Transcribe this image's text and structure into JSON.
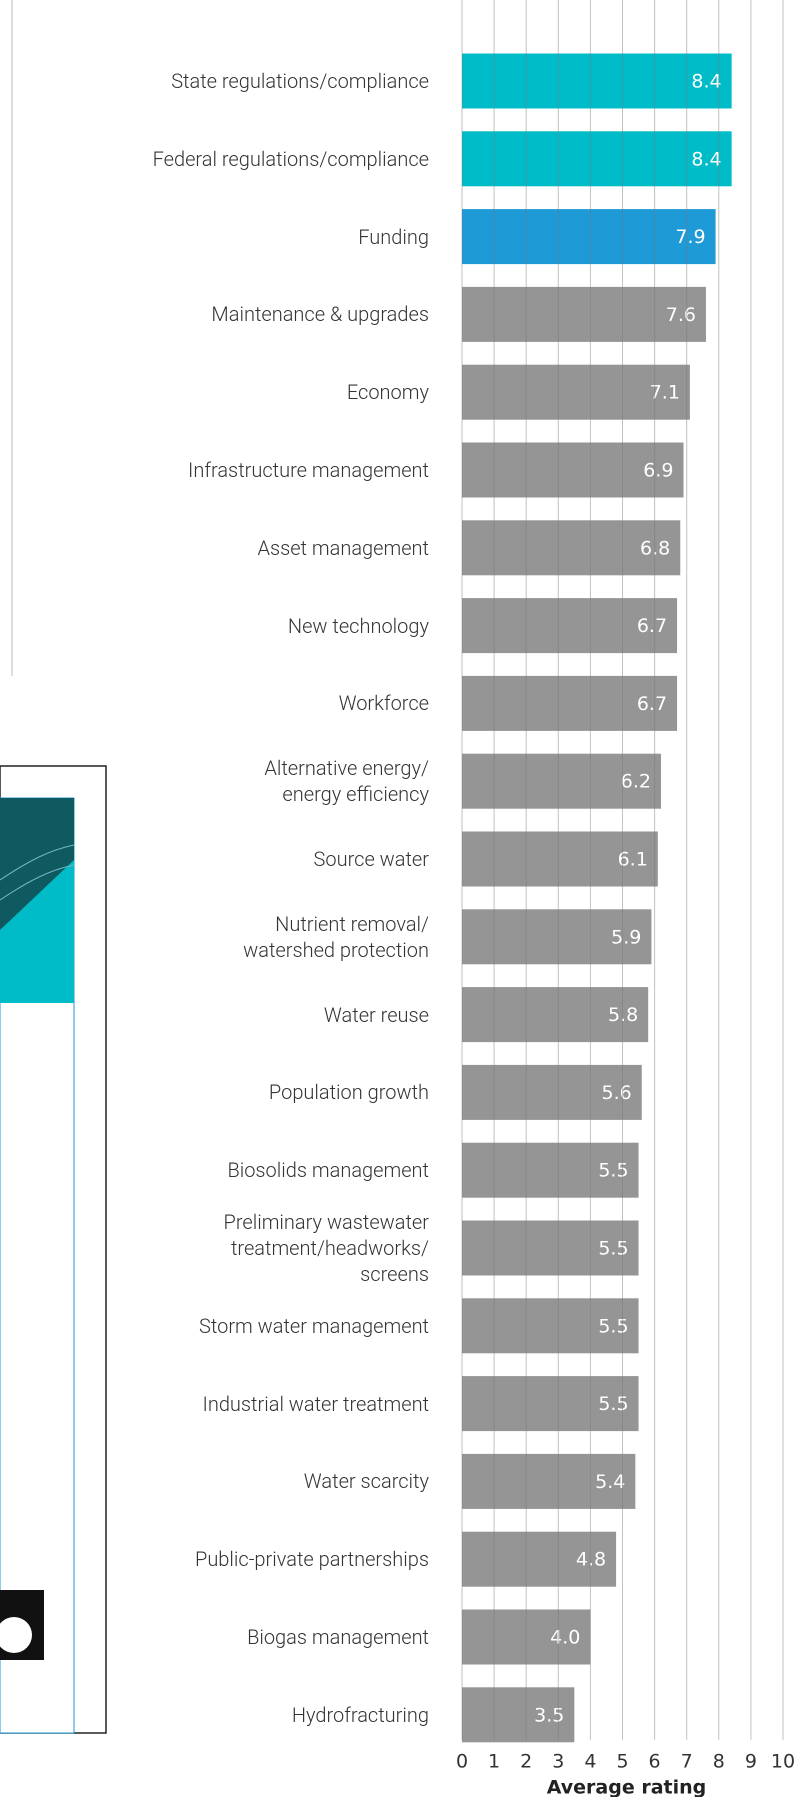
{
  "chart_data": {
    "type": "barh",
    "categories": [
      "State regulations/compliance",
      "Federal regulations/compliance",
      "Funding",
      "Maintenance & upgrades",
      "Economy",
      "Infrastructure management",
      "Asset management",
      "New technology",
      "Workforce",
      "Alternative energy/\nenergy efficiency",
      "Source water",
      "Nutrient removal/\nwatershed protection",
      "Water reuse",
      "Population growth",
      "Biosolids management",
      "Preliminary wastewater\ntreatment/headworks/\nscreens",
      "Storm water management",
      "Industrial water treatment",
      "Water scarcity",
      "Public-private partnerships",
      "Biogas management",
      "Hydrofracturing"
    ],
    "values": [
      8.4,
      8.4,
      7.9,
      7.6,
      7.1,
      6.9,
      6.8,
      6.7,
      6.7,
      6.2,
      6.1,
      5.9,
      5.8,
      5.6,
      5.5,
      5.5,
      5.5,
      5.5,
      5.4,
      4.8,
      4.0,
      3.5
    ],
    "value_labels": [
      "8.4",
      "8.4",
      "7.9",
      "7.6",
      "7.1",
      "6.9",
      "6.8",
      "6.7",
      "6.7",
      "6.2",
      "6.1",
      "5.9",
      "5.8",
      "5.6",
      "5.5",
      "5.5",
      "5.5",
      "5.5",
      "5.4",
      "4.8",
      "4.0",
      "3.5"
    ],
    "colors": [
      "#00bcc8",
      "#00bcc8",
      "#1e9ad6",
      "#959595",
      "#959595",
      "#959595",
      "#959595",
      "#959595",
      "#959595",
      "#959595",
      "#959595",
      "#959595",
      "#959595",
      "#959595",
      "#959595",
      "#959595",
      "#959595",
      "#959595",
      "#959595",
      "#959595",
      "#959595",
      "#959595"
    ],
    "xlim": [
      0,
      10
    ],
    "xticks": [
      0,
      1,
      2,
      3,
      4,
      5,
      6,
      7,
      8,
      9,
      10
    ],
    "xlabel": "Average rating",
    "grid": true
  }
}
